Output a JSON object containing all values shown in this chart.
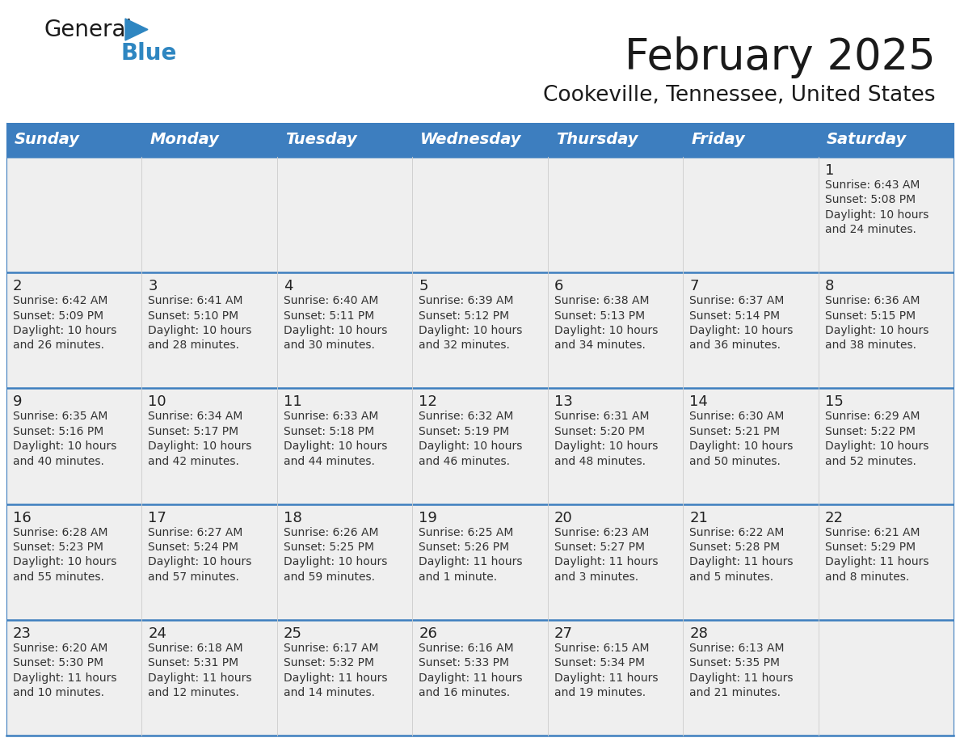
{
  "title": "February 2025",
  "subtitle": "Cookeville, Tennessee, United States",
  "header_color": "#3d7ebf",
  "header_text_color": "#ffffff",
  "cell_bg_color": "#efefef",
  "cell_active_bg": "#f5f5f5",
  "border_color": "#3d7ebf",
  "text_color": "#222222",
  "info_color": "#333333",
  "day_headers": [
    "Sunday",
    "Monday",
    "Tuesday",
    "Wednesday",
    "Thursday",
    "Friday",
    "Saturday"
  ],
  "title_fontsize": 38,
  "subtitle_fontsize": 19,
  "header_fontsize": 14,
  "day_num_fontsize": 13,
  "cell_fontsize": 10,
  "logo_general_fontsize": 20,
  "logo_blue_fontsize": 20,
  "calendar": [
    [
      null,
      null,
      null,
      null,
      null,
      null,
      {
        "day": 1,
        "sunrise": "6:43 AM",
        "sunset": "5:08 PM",
        "daylight": "10 hours and 24 minutes."
      }
    ],
    [
      {
        "day": 2,
        "sunrise": "6:42 AM",
        "sunset": "5:09 PM",
        "daylight": "10 hours and 26 minutes."
      },
      {
        "day": 3,
        "sunrise": "6:41 AM",
        "sunset": "5:10 PM",
        "daylight": "10 hours and 28 minutes."
      },
      {
        "day": 4,
        "sunrise": "6:40 AM",
        "sunset": "5:11 PM",
        "daylight": "10 hours and 30 minutes."
      },
      {
        "day": 5,
        "sunrise": "6:39 AM",
        "sunset": "5:12 PM",
        "daylight": "10 hours and 32 minutes."
      },
      {
        "day": 6,
        "sunrise": "6:38 AM",
        "sunset": "5:13 PM",
        "daylight": "10 hours and 34 minutes."
      },
      {
        "day": 7,
        "sunrise": "6:37 AM",
        "sunset": "5:14 PM",
        "daylight": "10 hours and 36 minutes."
      },
      {
        "day": 8,
        "sunrise": "6:36 AM",
        "sunset": "5:15 PM",
        "daylight": "10 hours and 38 minutes."
      }
    ],
    [
      {
        "day": 9,
        "sunrise": "6:35 AM",
        "sunset": "5:16 PM",
        "daylight": "10 hours and 40 minutes."
      },
      {
        "day": 10,
        "sunrise": "6:34 AM",
        "sunset": "5:17 PM",
        "daylight": "10 hours and 42 minutes."
      },
      {
        "day": 11,
        "sunrise": "6:33 AM",
        "sunset": "5:18 PM",
        "daylight": "10 hours and 44 minutes."
      },
      {
        "day": 12,
        "sunrise": "6:32 AM",
        "sunset": "5:19 PM",
        "daylight": "10 hours and 46 minutes."
      },
      {
        "day": 13,
        "sunrise": "6:31 AM",
        "sunset": "5:20 PM",
        "daylight": "10 hours and 48 minutes."
      },
      {
        "day": 14,
        "sunrise": "6:30 AM",
        "sunset": "5:21 PM",
        "daylight": "10 hours and 50 minutes."
      },
      {
        "day": 15,
        "sunrise": "6:29 AM",
        "sunset": "5:22 PM",
        "daylight": "10 hours and 52 minutes."
      }
    ],
    [
      {
        "day": 16,
        "sunrise": "6:28 AM",
        "sunset": "5:23 PM",
        "daylight": "10 hours and 55 minutes."
      },
      {
        "day": 17,
        "sunrise": "6:27 AM",
        "sunset": "5:24 PM",
        "daylight": "10 hours and 57 minutes."
      },
      {
        "day": 18,
        "sunrise": "6:26 AM",
        "sunset": "5:25 PM",
        "daylight": "10 hours and 59 minutes."
      },
      {
        "day": 19,
        "sunrise": "6:25 AM",
        "sunset": "5:26 PM",
        "daylight": "11 hours and 1 minute."
      },
      {
        "day": 20,
        "sunrise": "6:23 AM",
        "sunset": "5:27 PM",
        "daylight": "11 hours and 3 minutes."
      },
      {
        "day": 21,
        "sunrise": "6:22 AM",
        "sunset": "5:28 PM",
        "daylight": "11 hours and 5 minutes."
      },
      {
        "day": 22,
        "sunrise": "6:21 AM",
        "sunset": "5:29 PM",
        "daylight": "11 hours and 8 minutes."
      }
    ],
    [
      {
        "day": 23,
        "sunrise": "6:20 AM",
        "sunset": "5:30 PM",
        "daylight": "11 hours and 10 minutes."
      },
      {
        "day": 24,
        "sunrise": "6:18 AM",
        "sunset": "5:31 PM",
        "daylight": "11 hours and 12 minutes."
      },
      {
        "day": 25,
        "sunrise": "6:17 AM",
        "sunset": "5:32 PM",
        "daylight": "11 hours and 14 minutes."
      },
      {
        "day": 26,
        "sunrise": "6:16 AM",
        "sunset": "5:33 PM",
        "daylight": "11 hours and 16 minutes."
      },
      {
        "day": 27,
        "sunrise": "6:15 AM",
        "sunset": "5:34 PM",
        "daylight": "11 hours and 19 minutes."
      },
      {
        "day": 28,
        "sunrise": "6:13 AM",
        "sunset": "5:35 PM",
        "daylight": "11 hours and 21 minutes."
      },
      null
    ]
  ]
}
